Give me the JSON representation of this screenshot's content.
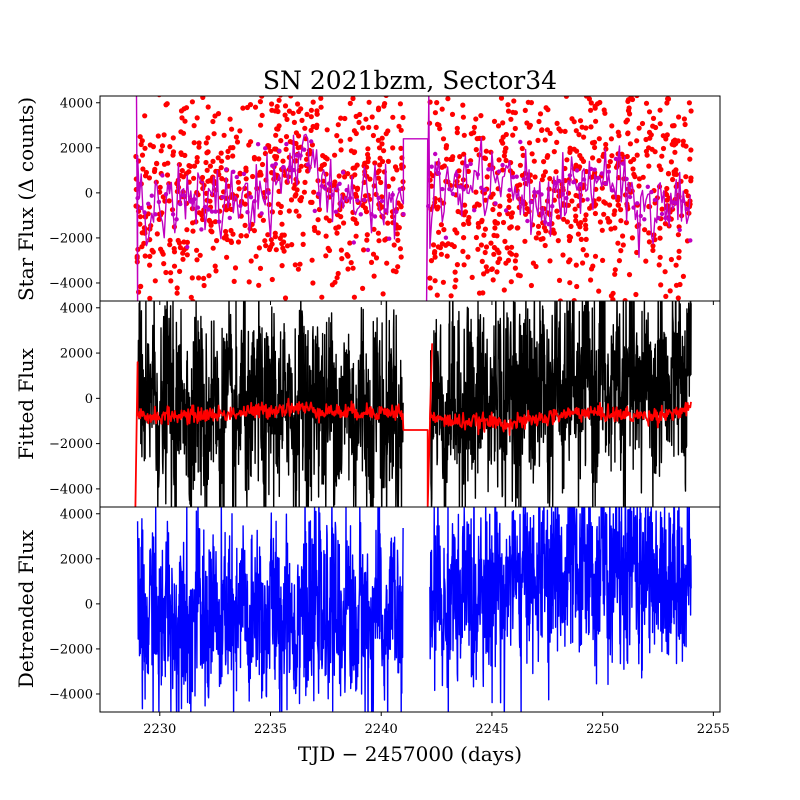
{
  "figure": {
    "title": "SN 2021bzm, Sector34",
    "xlabel": "TJD − 2457000 (days)"
  },
  "chart_data": [
    {
      "type": "scatter",
      "panel": "top",
      "ylabel": "Star Flux (Δ counts)",
      "xlim": [
        2227.3,
        2255.3
      ],
      "ylim": [
        -4800,
        4300
      ],
      "x_ticks": [
        2230,
        2235,
        2240,
        2245,
        2250,
        2255
      ],
      "y_ticks": [
        -4000,
        -2000,
        0,
        2000,
        4000
      ],
      "data_gap": [
        2241.0,
        2242.1
      ],
      "series": [
        {
          "role": "points",
          "color": "#ff0000",
          "marker": "circle",
          "x_range": [
            2228.9,
            2254.0
          ],
          "center_y": [
            [
              2229,
              0
            ],
            [
              2232,
              -200
            ],
            [
              2236,
              1000
            ],
            [
              2240,
              0
            ],
            [
              2243,
              -600
            ],
            [
              2246,
              0
            ],
            [
              2250,
              200
            ],
            [
              2254,
              200
            ]
          ],
          "scatter_std": 2700
        },
        {
          "role": "binned_line",
          "color": "#c000c0",
          "marker": "circle",
          "segments": [
            [
              2228.9,
              2241.0
            ],
            [
              2242.1,
              2254.0
            ]
          ],
          "gap_fill_y": 2400,
          "edge_spikes": [
            [
              2228.95,
              4300
            ],
            [
              2229.0,
              -4800
            ],
            [
              2242.05,
              -4800
            ],
            [
              2242.15,
              4300
            ]
          ],
          "center_y": [
            [
              2229,
              -200
            ],
            [
              2232,
              -500
            ],
            [
              2235,
              100
            ],
            [
              2236.5,
              1800
            ],
            [
              2238,
              0
            ],
            [
              2240,
              -600
            ],
            [
              2242.5,
              -100
            ],
            [
              2244,
              500
            ],
            [
              2245.5,
              400
            ],
            [
              2247,
              -500
            ],
            [
              2250,
              600
            ],
            [
              2252,
              -800
            ],
            [
              2254,
              -400
            ]
          ],
          "scatter_std": 800
        }
      ]
    },
    {
      "type": "line",
      "panel": "middle",
      "ylabel": "Fitted Flux",
      "xlim": [
        2227.3,
        2255.3
      ],
      "ylim": [
        -4800,
        4300
      ],
      "y_ticks": [
        -4000,
        -2000,
        0,
        2000,
        4000
      ],
      "data_gap": [
        2241.0,
        2242.1
      ],
      "series": [
        {
          "role": "data",
          "color": "#000000",
          "segments": [
            [
              2228.9,
              2241.0
            ],
            [
              2242.1,
              2254.0
            ]
          ],
          "center_y": [
            [
              2229,
              0
            ],
            [
              2233,
              -800
            ],
            [
              2237,
              -200
            ],
            [
              2240,
              -700
            ],
            [
              2243,
              -500
            ],
            [
              2246,
              300
            ],
            [
              2250,
              600
            ],
            [
              2254,
              600
            ]
          ],
          "scatter_std": 2100
        },
        {
          "role": "fit",
          "color": "#ff0000",
          "segments": [
            [
              2228.9,
              2241.0
            ],
            [
              2242.1,
              2254.0
            ]
          ],
          "gap_fill_y": -1400,
          "edge_spikes": [
            [
              2228.9,
              -4800
            ],
            [
              2229.0,
              1600
            ],
            [
              2242.1,
              -4800
            ],
            [
              2242.3,
              2400
            ]
          ],
          "center_y": [
            [
              2229.6,
              -800
            ],
            [
              2233,
              -700
            ],
            [
              2236,
              -400
            ],
            [
              2238,
              -600
            ],
            [
              2241,
              -600
            ],
            [
              2243,
              -1000
            ],
            [
              2246,
              -1100
            ],
            [
              2249,
              -600
            ],
            [
              2252,
              -800
            ],
            [
              2254,
              -500
            ]
          ],
          "scatter_std": 180
        }
      ]
    },
    {
      "type": "line",
      "panel": "bottom",
      "ylabel": "Detrended Flux",
      "xlim": [
        2227.3,
        2255.3
      ],
      "ylim": [
        -4800,
        4300
      ],
      "x_ticks": [
        2230,
        2235,
        2240,
        2245,
        2250,
        2255
      ],
      "y_ticks": [
        -4000,
        -2000,
        0,
        2000,
        4000
      ],
      "data_gap": [
        2241.0,
        2242.1
      ],
      "series": [
        {
          "role": "detrended",
          "color": "#0000ff",
          "segments": [
            [
              2228.9,
              2241.0
            ],
            [
              2242.1,
              2254.0
            ]
          ],
          "center_y": [
            [
              2229,
              -500
            ],
            [
              2233,
              -700
            ],
            [
              2237,
              -300
            ],
            [
              2240,
              -600
            ],
            [
              2243,
              200
            ],
            [
              2246,
              1000
            ],
            [
              2250,
              1600
            ],
            [
              2254,
              1200
            ]
          ],
          "scatter_std": 1900
        }
      ]
    }
  ]
}
